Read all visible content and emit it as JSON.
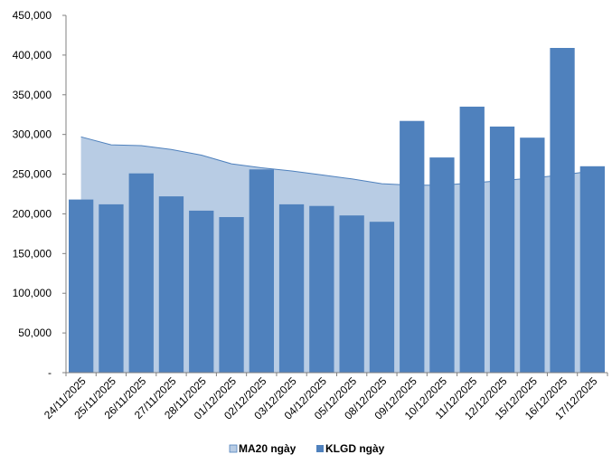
{
  "chart_data": {
    "type": "bar",
    "categories": [
      "24/11/2025",
      "25/11/2025",
      "26/11/2025",
      "27/11/2025",
      "28/11/2025",
      "01/12/2025",
      "02/12/2025",
      "03/12/2025",
      "04/12/2025",
      "05/12/2025",
      "08/12/2025",
      "09/12/2025",
      "10/12/2025",
      "11/12/2025",
      "12/12/2025",
      "15/12/2025",
      "16/12/2025",
      "17/12/2025"
    ],
    "ylim": [
      0,
      450000
    ],
    "yticks": [
      "-",
      "50,000",
      "100,000",
      "150,000",
      "200,000",
      "250,000",
      "300,000",
      "350,000",
      "400,000",
      "450,000"
    ],
    "ytick_values": [
      0,
      50000,
      100000,
      150000,
      200000,
      250000,
      300000,
      350000,
      400000,
      450000
    ],
    "grid": false,
    "legend_position": "bottom",
    "series": [
      {
        "name": "MA20 ngày",
        "type": "area",
        "color": "#b8cce4",
        "line_color": "#4f81bd",
        "values": [
          297000,
          287000,
          286000,
          281000,
          274000,
          263000,
          258000,
          254000,
          249000,
          244000,
          238000,
          236000,
          236000,
          239000,
          242000,
          245000,
          249000,
          254000
        ]
      },
      {
        "name": "KLGD ngày",
        "type": "bar",
        "color": "#4f81bd",
        "values": [
          218000,
          212000,
          251000,
          222000,
          204000,
          196000,
          256000,
          212000,
          210000,
          198000,
          190000,
          317000,
          271000,
          335000,
          310000,
          296000,
          409000,
          260000
        ]
      }
    ]
  }
}
